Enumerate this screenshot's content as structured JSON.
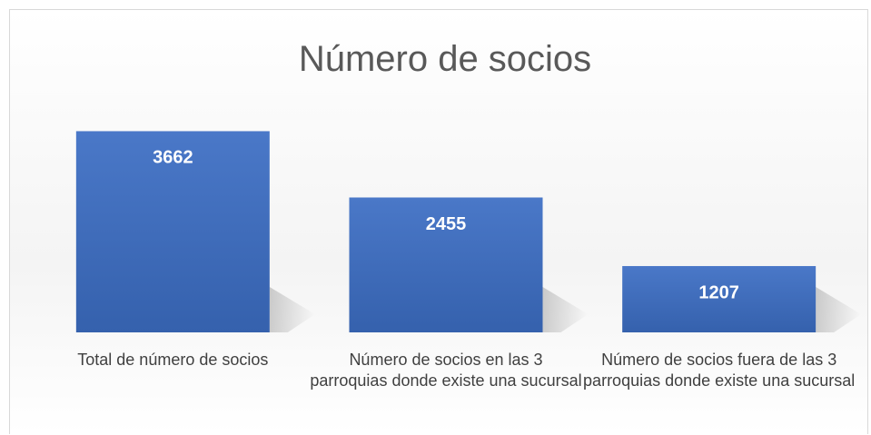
{
  "chart_data": {
    "type": "bar",
    "title": "Número de socios",
    "categories": [
      "Total de número de socios",
      "Número de socios en las 3 parroquias donde existe una sucursal",
      "Número de socios fuera de las 3 parroquias donde existe una sucursal"
    ],
    "values": [
      3662,
      2455,
      1207
    ],
    "color": "#4472c4",
    "ylim": [
      0,
      4000
    ],
    "grid": false
  }
}
